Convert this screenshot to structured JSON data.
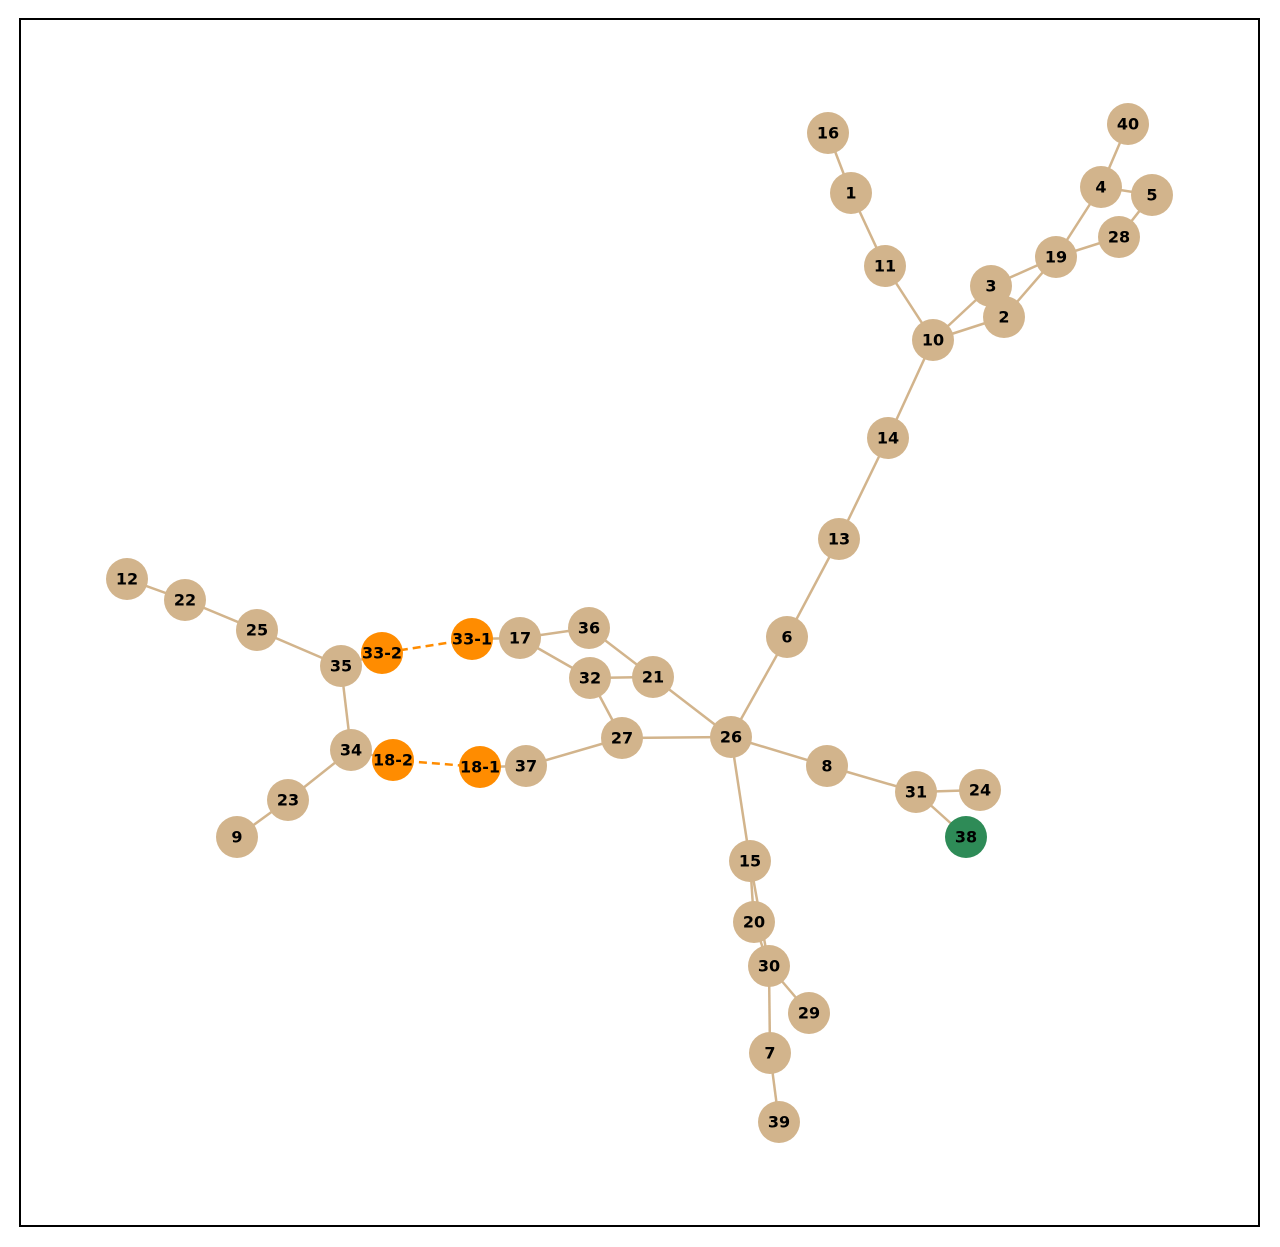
{
  "diagram": {
    "type": "network-graph",
    "colors": {
      "node_default": "#d2b48c",
      "node_split": "#ff8c00",
      "node_special": "#2e8b57",
      "edge_default": "#d2b48c",
      "edge_split": "#ff8c00",
      "frame": "#000000"
    },
    "nodes": [
      {
        "id": "1",
        "label": "1",
        "kind": "default"
      },
      {
        "id": "2",
        "label": "2",
        "kind": "default"
      },
      {
        "id": "3",
        "label": "3",
        "kind": "default"
      },
      {
        "id": "4",
        "label": "4",
        "kind": "default"
      },
      {
        "id": "5",
        "label": "5",
        "kind": "default"
      },
      {
        "id": "6",
        "label": "6",
        "kind": "default"
      },
      {
        "id": "7",
        "label": "7",
        "kind": "default"
      },
      {
        "id": "8",
        "label": "8",
        "kind": "default"
      },
      {
        "id": "9",
        "label": "9",
        "kind": "default"
      },
      {
        "id": "10",
        "label": "10",
        "kind": "default"
      },
      {
        "id": "11",
        "label": "11",
        "kind": "default"
      },
      {
        "id": "12",
        "label": "12",
        "kind": "default"
      },
      {
        "id": "13",
        "label": "13",
        "kind": "default"
      },
      {
        "id": "14",
        "label": "14",
        "kind": "default"
      },
      {
        "id": "15",
        "label": "15",
        "kind": "default"
      },
      {
        "id": "16",
        "label": "16",
        "kind": "default"
      },
      {
        "id": "17",
        "label": "17",
        "kind": "default"
      },
      {
        "id": "19",
        "label": "19",
        "kind": "default"
      },
      {
        "id": "20",
        "label": "20",
        "kind": "default"
      },
      {
        "id": "21",
        "label": "21",
        "kind": "default"
      },
      {
        "id": "22",
        "label": "22",
        "kind": "default"
      },
      {
        "id": "23",
        "label": "23",
        "kind": "default"
      },
      {
        "id": "24",
        "label": "24",
        "kind": "default"
      },
      {
        "id": "25",
        "label": "25",
        "kind": "default"
      },
      {
        "id": "26",
        "label": "26",
        "kind": "default"
      },
      {
        "id": "27",
        "label": "27",
        "kind": "default"
      },
      {
        "id": "28",
        "label": "28",
        "kind": "default"
      },
      {
        "id": "29",
        "label": "29",
        "kind": "default"
      },
      {
        "id": "30",
        "label": "30",
        "kind": "default"
      },
      {
        "id": "31",
        "label": "31",
        "kind": "default"
      },
      {
        "id": "32",
        "label": "32",
        "kind": "default"
      },
      {
        "id": "34",
        "label": "34",
        "kind": "default"
      },
      {
        "id": "35",
        "label": "35",
        "kind": "default"
      },
      {
        "id": "36",
        "label": "36",
        "kind": "default"
      },
      {
        "id": "37",
        "label": "37",
        "kind": "default"
      },
      {
        "id": "38",
        "label": "38",
        "kind": "special"
      },
      {
        "id": "39",
        "label": "39",
        "kind": "default"
      },
      {
        "id": "40",
        "label": "40",
        "kind": "default"
      },
      {
        "id": "33-1",
        "label": "33-1",
        "kind": "split"
      },
      {
        "id": "33-2",
        "label": "33-2",
        "kind": "split"
      },
      {
        "id": "18-1",
        "label": "18-1",
        "kind": "split"
      },
      {
        "id": "18-2",
        "label": "18-2",
        "kind": "split"
      }
    ],
    "edges": [
      {
        "source": "16",
        "target": "1",
        "style": "solid"
      },
      {
        "source": "1",
        "target": "11",
        "style": "solid"
      },
      {
        "source": "11",
        "target": "10",
        "style": "solid"
      },
      {
        "source": "10",
        "target": "3",
        "style": "solid"
      },
      {
        "source": "10",
        "target": "2",
        "style": "solid"
      },
      {
        "source": "3",
        "target": "2",
        "style": "solid"
      },
      {
        "source": "3",
        "target": "19",
        "style": "solid"
      },
      {
        "source": "2",
        "target": "19",
        "style": "solid"
      },
      {
        "source": "19",
        "target": "4",
        "style": "solid"
      },
      {
        "source": "19",
        "target": "28",
        "style": "solid"
      },
      {
        "source": "4",
        "target": "40",
        "style": "solid"
      },
      {
        "source": "4",
        "target": "5",
        "style": "solid"
      },
      {
        "source": "5",
        "target": "28",
        "style": "solid"
      },
      {
        "source": "10",
        "target": "14",
        "style": "solid"
      },
      {
        "source": "14",
        "target": "13",
        "style": "solid"
      },
      {
        "source": "13",
        "target": "6",
        "style": "solid"
      },
      {
        "source": "6",
        "target": "26",
        "style": "solid"
      },
      {
        "source": "26",
        "target": "8",
        "style": "solid"
      },
      {
        "source": "8",
        "target": "31",
        "style": "solid"
      },
      {
        "source": "31",
        "target": "24",
        "style": "solid"
      },
      {
        "source": "31",
        "target": "38",
        "style": "solid"
      },
      {
        "source": "26",
        "target": "15",
        "style": "solid"
      },
      {
        "source": "15",
        "target": "20",
        "style": "solid"
      },
      {
        "source": "15",
        "target": "30",
        "style": "solid"
      },
      {
        "source": "20",
        "target": "30",
        "style": "solid"
      },
      {
        "source": "30",
        "target": "29",
        "style": "solid"
      },
      {
        "source": "30",
        "target": "7",
        "style": "solid"
      },
      {
        "source": "7",
        "target": "39",
        "style": "solid"
      },
      {
        "source": "26",
        "target": "21",
        "style": "solid"
      },
      {
        "source": "26",
        "target": "27",
        "style": "solid"
      },
      {
        "source": "21",
        "target": "36",
        "style": "solid"
      },
      {
        "source": "21",
        "target": "32",
        "style": "solid"
      },
      {
        "source": "32",
        "target": "27",
        "style": "solid"
      },
      {
        "source": "32",
        "target": "17",
        "style": "solid"
      },
      {
        "source": "36",
        "target": "17",
        "style": "solid"
      },
      {
        "source": "17",
        "target": "33-1",
        "style": "solid"
      },
      {
        "source": "33-1",
        "target": "33-2",
        "style": "dashed"
      },
      {
        "source": "33-2",
        "target": "35",
        "style": "solid"
      },
      {
        "source": "35",
        "target": "25",
        "style": "solid"
      },
      {
        "source": "25",
        "target": "22",
        "style": "solid"
      },
      {
        "source": "22",
        "target": "12",
        "style": "solid"
      },
      {
        "source": "35",
        "target": "34",
        "style": "solid"
      },
      {
        "source": "34",
        "target": "23",
        "style": "solid"
      },
      {
        "source": "23",
        "target": "9",
        "style": "solid"
      },
      {
        "source": "34",
        "target": "18-2",
        "style": "solid"
      },
      {
        "source": "18-2",
        "target": "18-1",
        "style": "dashed"
      },
      {
        "source": "18-1",
        "target": "37",
        "style": "solid"
      },
      {
        "source": "37",
        "target": "27",
        "style": "solid"
      }
    ]
  }
}
